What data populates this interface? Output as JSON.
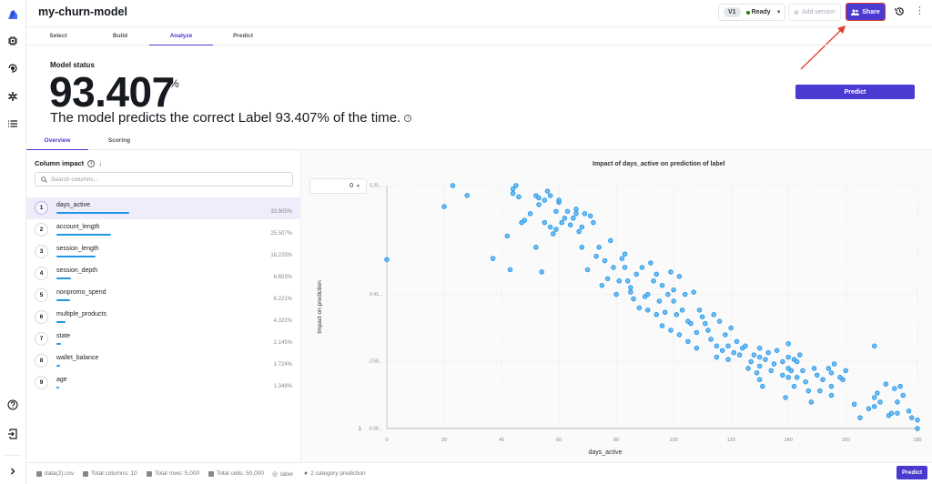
{
  "header": {
    "title": "my-churn-model",
    "version": "V1",
    "status": "Ready",
    "add_version": "Add version",
    "share": "Share"
  },
  "tabs": [
    {
      "label": "Select",
      "active": false
    },
    {
      "label": "Build",
      "active": false
    },
    {
      "label": "Analyze",
      "active": true
    },
    {
      "label": "Predict",
      "active": false
    }
  ],
  "model_status": {
    "label": "Model status",
    "accuracy": "93.407",
    "percent_sign": "%",
    "description": "The model predicts the correct Label 93.407% of the time.",
    "predict_button": "Predict"
  },
  "subtabs": [
    {
      "label": "Overview",
      "active": true
    },
    {
      "label": "Scoring",
      "active": false
    }
  ],
  "column_impact": {
    "title": "Column impact",
    "search_placeholder": "Search columns...",
    "items": [
      {
        "rank": "1",
        "name": "days_active",
        "value": "33.905%",
        "pct": 33.905
      },
      {
        "rank": "2",
        "name": "account_length",
        "value": "25.507%",
        "pct": 25.507
      },
      {
        "rank": "3",
        "name": "session_length",
        "value": "18.225%",
        "pct": 18.225
      },
      {
        "rank": "4",
        "name": "session_depth",
        "value": "6.603%",
        "pct": 6.603
      },
      {
        "rank": "5",
        "name": "nonpromo_spend",
        "value": "6.221%",
        "pct": 6.221
      },
      {
        "rank": "6",
        "name": "multiple_products",
        "value": "4.322%",
        "pct": 4.322
      },
      {
        "rank": "7",
        "name": "state",
        "value": "2.145%",
        "pct": 2.145
      },
      {
        "rank": "8",
        "name": "wallet_balance",
        "value": "1.724%",
        "pct": 1.724
      },
      {
        "rank": "9",
        "name": "age",
        "value": "1.348%",
        "pct": 1.348
      }
    ]
  },
  "chart": {
    "dropdown_value": "0",
    "bottom_left_label": "1"
  },
  "footer": {
    "file": "data(2).csv",
    "total_columns": "Total columns: 10",
    "total_rows": "Total rows: 5,000",
    "total_cells": "Total cells: 50,000",
    "target": "label",
    "prediction_type": "2 category prediction",
    "predict_button": "Predict"
  },
  "colors": {
    "accent": "#4a3ad1",
    "point": "#2196e8",
    "highlight": "#e33c2c"
  },
  "chart_data": {
    "type": "scatter",
    "title": "Impact of days_active on prediction of label",
    "xlabel": "days_active",
    "ylabel": "Impact on prediction",
    "xlim": [
      0,
      185
    ],
    "ylim": [
      -5.58,
      5.25
    ],
    "x_ticks": [
      "0",
      "20",
      "40",
      "60",
      "80",
      "100",
      "120",
      "140",
      "160",
      "185"
    ],
    "y_ticks": [
      "5.25...",
      "0.41...",
      "-2.58...",
      "-5.58..."
    ],
    "grid": true,
    "points": [
      [
        0,
        1.95
      ],
      [
        20,
        4.31
      ],
      [
        23,
        5.25
      ],
      [
        28,
        4.81
      ],
      [
        37,
        2.0
      ],
      [
        42,
        3.0
      ],
      [
        43,
        1.5
      ],
      [
        44,
        4.9
      ],
      [
        44,
        5.1
      ],
      [
        45,
        5.25
      ],
      [
        46,
        4.75
      ],
      [
        47,
        3.6
      ],
      [
        48,
        3.7
      ],
      [
        50,
        4.0
      ],
      [
        52,
        2.5
      ],
      [
        52,
        4.8
      ],
      [
        53,
        4.7
      ],
      [
        53,
        4.4
      ],
      [
        54,
        1.4
      ],
      [
        55,
        3.6
      ],
      [
        55,
        4.6
      ],
      [
        56,
        5.0
      ],
      [
        57,
        3.4
      ],
      [
        57,
        4.8
      ],
      [
        58,
        3.1
      ],
      [
        59,
        3.3
      ],
      [
        59,
        4.1
      ],
      [
        60,
        4.5
      ],
      [
        60,
        4.6
      ],
      [
        61,
        3.6
      ],
      [
        62,
        3.8
      ],
      [
        63,
        4.1
      ],
      [
        64,
        3.5
      ],
      [
        65,
        3.8
      ],
      [
        66,
        4.2
      ],
      [
        66,
        4.0
      ],
      [
        67,
        3.2
      ],
      [
        68,
        2.5
      ],
      [
        68,
        3.4
      ],
      [
        69,
        4.0
      ],
      [
        70,
        1.5
      ],
      [
        71,
        3.9
      ],
      [
        72,
        3.6
      ],
      [
        73,
        2.1
      ],
      [
        74,
        2.5
      ],
      [
        75,
        0.8
      ],
      [
        76,
        1.9
      ],
      [
        77,
        1.1
      ],
      [
        78,
        2.8
      ],
      [
        79,
        1.6
      ],
      [
        80,
        0.4
      ],
      [
        81,
        1.0
      ],
      [
        82,
        2.0
      ],
      [
        83,
        1.6
      ],
      [
        83,
        2.2
      ],
      [
        84,
        1.0
      ],
      [
        85,
        0.7
      ],
      [
        85,
        0.5
      ],
      [
        86,
        0.2
      ],
      [
        87,
        1.3
      ],
      [
        88,
        -0.2
      ],
      [
        89,
        1.6
      ],
      [
        90,
        0.3
      ],
      [
        91,
        0.4
      ],
      [
        91,
        -0.3
      ],
      [
        92,
        1.8
      ],
      [
        93,
        1.0
      ],
      [
        94,
        -0.5
      ],
      [
        94,
        1.3
      ],
      [
        95,
        0.1
      ],
      [
        96,
        -1.0
      ],
      [
        96,
        0.8
      ],
      [
        97,
        -0.4
      ],
      [
        98,
        0.4
      ],
      [
        99,
        1.4
      ],
      [
        99,
        -1.2
      ],
      [
        100,
        0.6
      ],
      [
        100,
        0.1
      ],
      [
        101,
        -0.5
      ],
      [
        102,
        1.2
      ],
      [
        102,
        -1.4
      ],
      [
        103,
        -0.3
      ],
      [
        104,
        0.4
      ],
      [
        105,
        -0.8
      ],
      [
        105,
        -1.7
      ],
      [
        106,
        -0.9
      ],
      [
        107,
        0.5
      ],
      [
        108,
        -1.3
      ],
      [
        108,
        -2.0
      ],
      [
        109,
        -0.3
      ],
      [
        110,
        -0.6
      ],
      [
        111,
        -0.9
      ],
      [
        112,
        -1.2
      ],
      [
        113,
        -1.6
      ],
      [
        114,
        -0.5
      ],
      [
        115,
        -1.9
      ],
      [
        115,
        -2.4
      ],
      [
        116,
        -0.8
      ],
      [
        117,
        -2.1
      ],
      [
        118,
        -1.4
      ],
      [
        119,
        -1.9
      ],
      [
        119,
        -2.5
      ],
      [
        120,
        -1.1
      ],
      [
        121,
        -2.2
      ],
      [
        122,
        -1.7
      ],
      [
        123,
        -2.3
      ],
      [
        124,
        -2.0
      ],
      [
        125,
        -1.9
      ],
      [
        126,
        -2.9
      ],
      [
        127,
        -2.6
      ],
      [
        128,
        -2.3
      ],
      [
        129,
        -3.1
      ],
      [
        130,
        -2.8
      ],
      [
        130,
        -2.4
      ],
      [
        130,
        -3.4
      ],
      [
        130,
        -2.0
      ],
      [
        131,
        -3.7
      ],
      [
        132,
        -2.5
      ],
      [
        133,
        -2.2
      ],
      [
        134,
        -3.0
      ],
      [
        135,
        -2.7
      ],
      [
        136,
        -2.1
      ],
      [
        138,
        -2.6
      ],
      [
        138,
        -3.2
      ],
      [
        139,
        -4.2
      ],
      [
        140,
        -1.8
      ],
      [
        140,
        -2.4
      ],
      [
        140,
        -2.9
      ],
      [
        140,
        -3.3
      ],
      [
        141,
        -3.0
      ],
      [
        142,
        -2.5
      ],
      [
        142,
        -3.7
      ],
      [
        143,
        -2.6
      ],
      [
        143,
        -3.3
      ],
      [
        144,
        -2.3
      ],
      [
        145,
        -3.0
      ],
      [
        146,
        -3.5
      ],
      [
        147,
        -3.9
      ],
      [
        148,
        -4.4
      ],
      [
        149,
        -2.9
      ],
      [
        150,
        -3.2
      ],
      [
        151,
        -3.9
      ],
      [
        152,
        -3.4
      ],
      [
        154,
        -2.9
      ],
      [
        155,
        -3.7
      ],
      [
        155,
        -3.1
      ],
      [
        155,
        -4.1
      ],
      [
        156,
        -2.7
      ],
      [
        158,
        -3.3
      ],
      [
        159,
        -3.4
      ],
      [
        160,
        -3.0
      ],
      [
        163,
        -4.5
      ],
      [
        165,
        -5.1
      ],
      [
        168,
        -4.7
      ],
      [
        170,
        -1.9
      ],
      [
        170,
        -4.2
      ],
      [
        170,
        -4.6
      ],
      [
        171,
        -4.0
      ],
      [
        172,
        -4.4
      ],
      [
        174,
        -3.6
      ],
      [
        175,
        -5.0
      ],
      [
        176,
        -4.9
      ],
      [
        177,
        -3.8
      ],
      [
        178,
        -4.4
      ],
      [
        178,
        -4.9
      ],
      [
        179,
        -3.7
      ],
      [
        180,
        -4.1
      ],
      [
        182,
        -4.8
      ],
      [
        183,
        -5.1
      ],
      [
        185,
        -5.2
      ],
      [
        185,
        -5.58
      ]
    ]
  }
}
